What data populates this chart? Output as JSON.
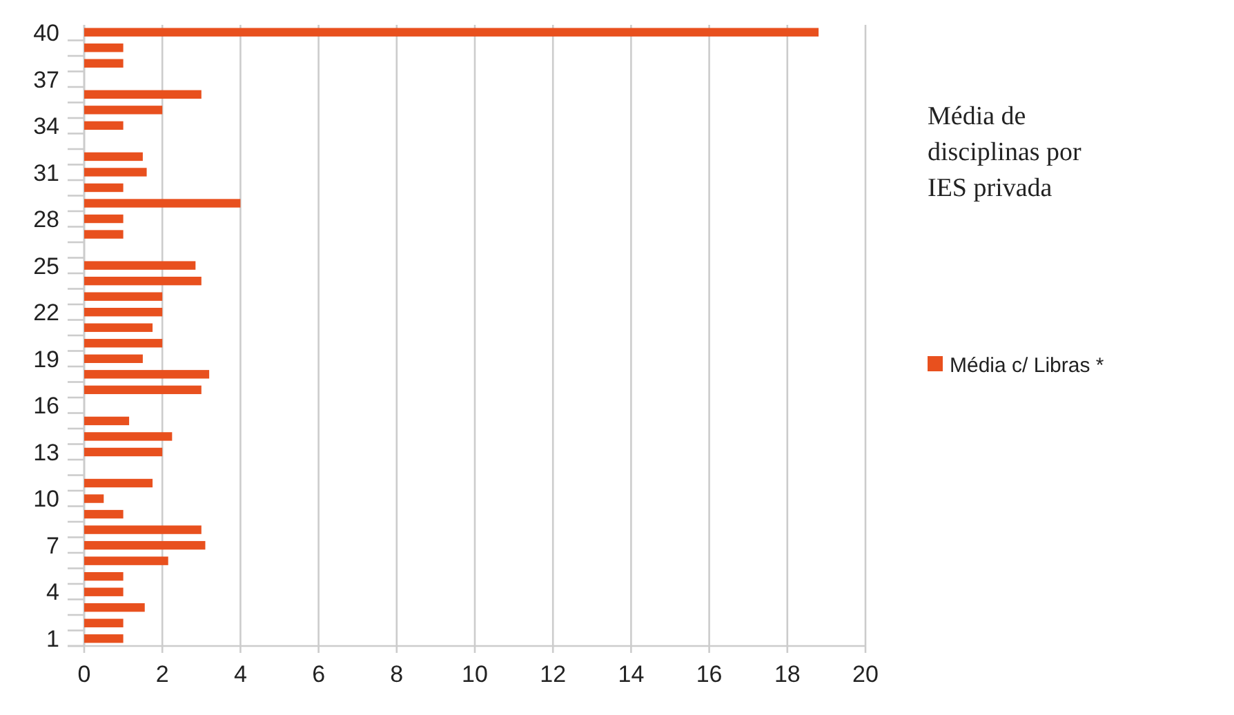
{
  "chart_data": {
    "type": "bar",
    "orientation": "horizontal",
    "legend_title": "Média de disciplinas por IES privada",
    "legend": "right",
    "grid": "x",
    "categories": [
      "40",
      null,
      null,
      "37",
      null,
      null,
      "34",
      null,
      null,
      "31",
      null,
      null,
      "28",
      null,
      null,
      "25",
      null,
      null,
      "22",
      null,
      null,
      "19",
      null,
      null,
      "16",
      null,
      null,
      "13",
      null,
      null,
      "10",
      null,
      null,
      "7",
      null,
      null,
      "4",
      null,
      null,
      "1"
    ],
    "series": [
      {
        "name": "Média c/ Libras *",
        "color": "#e8501e",
        "values": [
          18.8,
          1,
          1,
          null,
          3,
          2,
          1,
          null,
          1.5,
          1.6,
          1,
          4,
          1,
          1,
          null,
          2.85,
          3,
          2,
          2,
          1.75,
          2,
          1.5,
          3.2,
          3,
          null,
          1.15,
          2.25,
          2,
          null,
          1.75,
          0.5,
          1,
          3,
          3.1,
          2.15,
          1,
          1,
          1.55,
          1,
          1
        ]
      }
    ],
    "xlim": [
      0,
      20
    ],
    "xticks": [
      0,
      2,
      4,
      6,
      8,
      10,
      12,
      14,
      16,
      18,
      20
    ]
  }
}
